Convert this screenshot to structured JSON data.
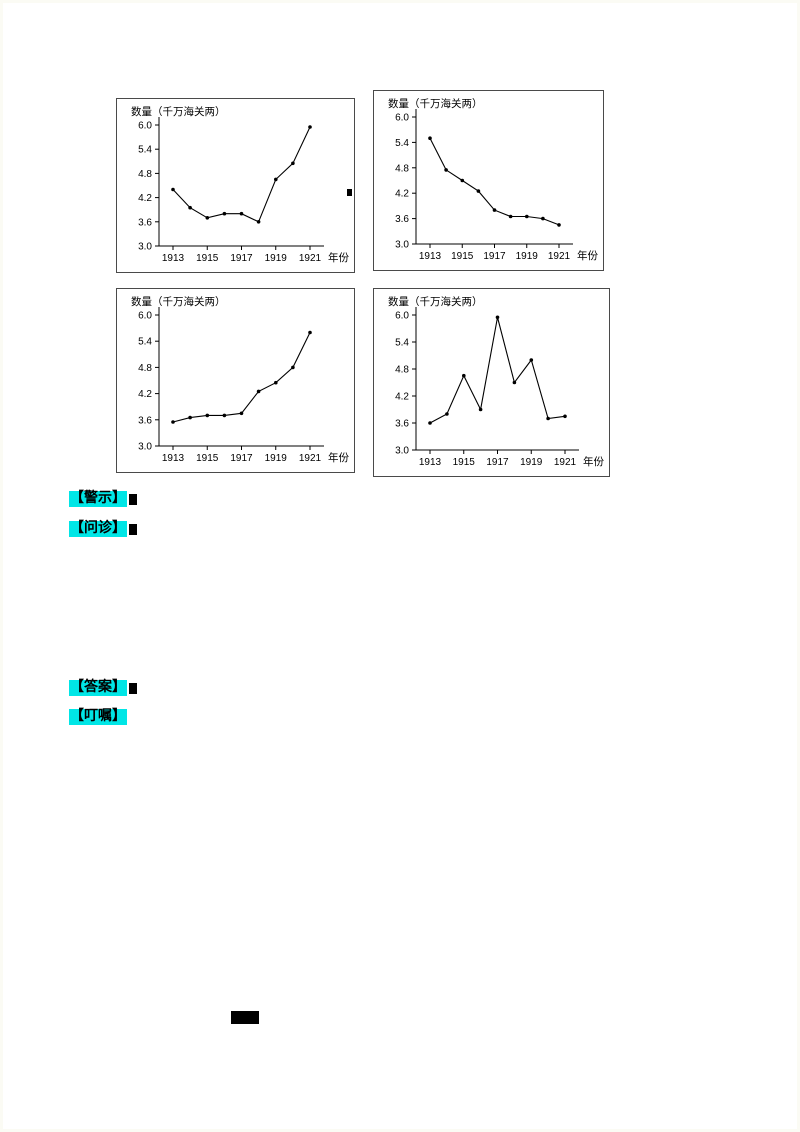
{
  "page": {
    "background": "#ffffff"
  },
  "chart_data": [
    {
      "type": "line",
      "position": "top-left",
      "title": "数量（千万海关两）",
      "xlabel": "年份",
      "x": [
        1913,
        1914,
        1915,
        1916,
        1917,
        1918,
        1919,
        1920,
        1921
      ],
      "values": [
        4.4,
        3.95,
        3.7,
        3.8,
        3.8,
        3.6,
        4.65,
        5.05,
        5.95
      ],
      "ylim": [
        3.0,
        6.0
      ],
      "yticks": [
        "3.0",
        "3.6",
        "4.2",
        "4.8",
        "5.4",
        "6.0"
      ],
      "xticks": [
        1913,
        1915,
        1917,
        1919,
        1921
      ],
      "line_color": "#000000",
      "grid": false,
      "legend": "none"
    },
    {
      "type": "line",
      "position": "top-right",
      "title": "数量（千万海关两）",
      "xlabel": "年份",
      "x": [
        1913,
        1914,
        1915,
        1916,
        1917,
        1918,
        1919,
        1920,
        1921
      ],
      "values": [
        5.5,
        4.75,
        4.5,
        4.25,
        3.8,
        3.65,
        3.65,
        3.6,
        3.45
      ],
      "ylim": [
        3.0,
        6.0
      ],
      "yticks": [
        "3.0",
        "3.6",
        "4.2",
        "4.8",
        "5.4",
        "6.0"
      ],
      "xticks": [
        1913,
        1915,
        1917,
        1919,
        1921
      ],
      "line_color": "#000000",
      "grid": false,
      "legend": "none"
    },
    {
      "type": "line",
      "position": "bottom-left",
      "title": "数量（千万海关两）",
      "xlabel": "年份",
      "x": [
        1913,
        1914,
        1915,
        1916,
        1917,
        1918,
        1919,
        1920,
        1921
      ],
      "values": [
        3.55,
        3.65,
        3.7,
        3.7,
        3.75,
        4.25,
        4.45,
        4.8,
        5.6
      ],
      "ylim": [
        3.0,
        6.0
      ],
      "yticks": [
        "3.0",
        "3.6",
        "4.2",
        "4.8",
        "5.4",
        "6.0"
      ],
      "xticks": [
        1913,
        1915,
        1917,
        1919,
        1921
      ],
      "line_color": "#000000",
      "grid": false,
      "legend": "none"
    },
    {
      "type": "line",
      "position": "bottom-right",
      "title": "数量（千万海关两）",
      "xlabel": "年份",
      "x": [
        1913,
        1914,
        1915,
        1916,
        1917,
        1918,
        1919,
        1920,
        1921
      ],
      "values": [
        3.6,
        3.8,
        4.65,
        3.9,
        5.95,
        4.5,
        5.0,
        3.7,
        3.75
      ],
      "ylim": [
        3.0,
        6.0
      ],
      "yticks": [
        "3.0",
        "3.6",
        "4.2",
        "4.8",
        "5.4",
        "6.0"
      ],
      "xticks": [
        1913,
        1915,
        1917,
        1919,
        1921
      ],
      "line_color": "#000000",
      "grid": false,
      "legend": "none"
    }
  ],
  "annotations": {
    "highlight_color": "#00e6e6",
    "warning": {
      "label": "【警示】"
    },
    "inquiry": {
      "label": "【问诊】"
    },
    "answer": {
      "label": "【答案】"
    },
    "advice": {
      "label": "【叮嘱】"
    }
  }
}
